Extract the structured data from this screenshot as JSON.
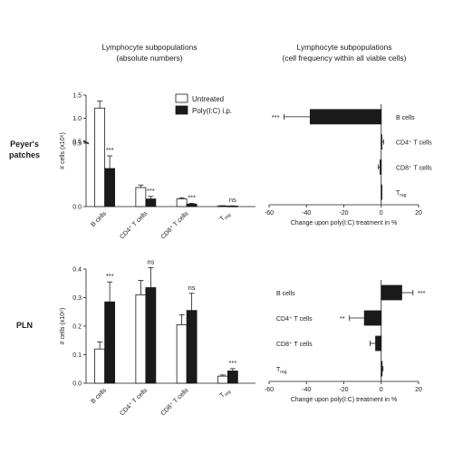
{
  "headers": {
    "left": [
      "Lymphocyte subpopulations",
      "(absolute numbers)"
    ],
    "right": [
      "Lymphocyte subpopulations",
      "(cell frequency within all viable cells)"
    ]
  },
  "row_labels": {
    "pp": [
      "Peyer's",
      "patches"
    ],
    "pln": "PLN"
  },
  "legend": {
    "untreated": "Untreated",
    "poly": "Poly(I:C) i.p."
  },
  "colors": {
    "untreated": "#ffffff",
    "poly": "#1a1a1a",
    "axis": "#1a1a1a"
  },
  "chart_data": [
    {
      "id": "pp_absolute",
      "type": "bar",
      "categories": [
        "B cells",
        "CD4⁺ T cells",
        "CD8⁺ T cells",
        "T reg"
      ],
      "series": [
        {
          "name": "Untreated",
          "values": [
            1.22,
            0.15,
            0.06,
            0.005
          ],
          "errors": [
            0.15,
            0.02,
            0.01,
            0.002
          ]
        },
        {
          "name": "Poly(I:C) i.p.",
          "values": [
            0.3,
            0.06,
            0.02,
            0.004
          ],
          "errors": [
            0.1,
            0.02,
            0.005,
            0.002
          ]
        }
      ],
      "significance": [
        "***",
        "***",
        "***",
        "ns"
      ],
      "ylabel": "# cells (x10⁶)",
      "y_axis_break": {
        "lower": [
          0,
          0.5
        ],
        "upper": [
          0.5,
          1.5
        ]
      },
      "yticks_lower": [
        "0.0",
        "0.5"
      ],
      "yticks_upper": [
        "1.0",
        "1.5"
      ]
    },
    {
      "id": "pp_change",
      "type": "bar",
      "orientation": "horizontal",
      "categories": [
        "B cells",
        "CD4⁺ T cells",
        "CD8⁺ T cells",
        "T reg"
      ],
      "values": [
        -38,
        0.3,
        -0.6,
        0
      ],
      "errors": [
        14,
        1,
        1,
        0
      ],
      "significance": [
        "***",
        "",
        "",
        ""
      ],
      "xlabel": "Change upon poly(I:C) treatment in %",
      "xlim": [
        -60,
        20
      ],
      "xticks": [
        "-60",
        "-40",
        "-20",
        "0",
        "20"
      ]
    },
    {
      "id": "pln_absolute",
      "type": "bar",
      "categories": [
        "B cells",
        "CD4⁺ T cells",
        "CD8⁺ T cells",
        "T reg"
      ],
      "series": [
        {
          "name": "Untreated",
          "values": [
            0.12,
            0.31,
            0.205,
            0.025
          ],
          "errors": [
            0.025,
            0.05,
            0.035,
            0.004
          ]
        },
        {
          "name": "Poly(I:C) i.p.",
          "values": [
            0.285,
            0.335,
            0.255,
            0.043
          ],
          "errors": [
            0.07,
            0.07,
            0.06,
            0.008
          ]
        }
      ],
      "significance": [
        "***",
        "ns",
        "ns",
        "***"
      ],
      "ylabel": "# cells (x10⁶)",
      "ylim": [
        0,
        0.4
      ],
      "yticks": [
        "0.0",
        "0.1",
        "0.2",
        "0.3",
        "0.4"
      ]
    },
    {
      "id": "pln_change",
      "type": "bar",
      "orientation": "horizontal",
      "categories": [
        "B cells",
        "CD4⁺ T cells",
        "CD8⁺ T cells",
        "T reg"
      ],
      "values": [
        11,
        -9,
        -3,
        0.5
      ],
      "errors": [
        6,
        8,
        3,
        0.5
      ],
      "significance": [
        "***",
        "**",
        "",
        ""
      ],
      "xlabel": "Change upon poly(I:C) treatment in %",
      "xlim": [
        -60,
        20
      ],
      "xticks": [
        "-60",
        "-40",
        "-20",
        "0",
        "20"
      ]
    }
  ]
}
